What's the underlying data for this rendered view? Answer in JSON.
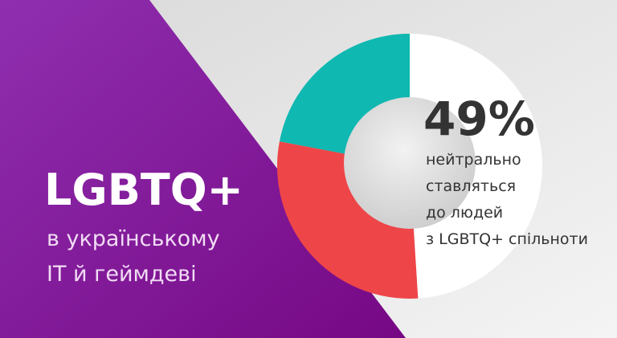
{
  "chart_data": {
    "type": "pie",
    "donut": true,
    "title": "LGBTQ+",
    "subtitle": [
      "в українському",
      "IT й геймдеві"
    ],
    "values": [
      49,
      29,
      22
    ],
    "value_labels": [
      "49%",
      null,
      null
    ],
    "colors": [
      "#ffffff",
      "#ee4549",
      "#0fb8b0"
    ],
    "annotation": [
      "нейтрально",
      "ставляться",
      "до людей",
      "з LGBTQ+ спільноти"
    ]
  }
}
